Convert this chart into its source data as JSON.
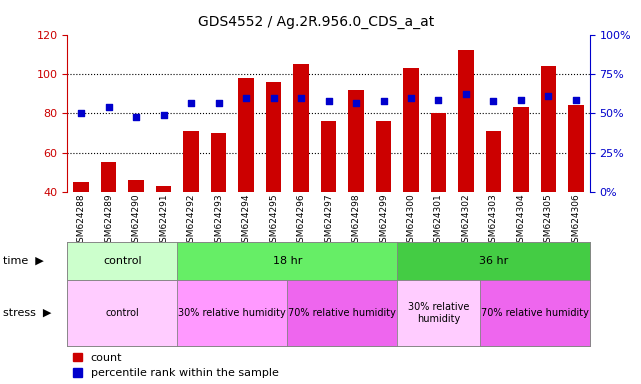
{
  "title": "GDS4552 / Ag.2R.956.0_CDS_a_at",
  "samples": [
    "GSM624288",
    "GSM624289",
    "GSM624290",
    "GSM624291",
    "GSM624292",
    "GSM624293",
    "GSM624294",
    "GSM624295",
    "GSM624296",
    "GSM624297",
    "GSM624298",
    "GSM624299",
    "GSM624300",
    "GSM624301",
    "GSM624302",
    "GSM624303",
    "GSM624304",
    "GSM624305",
    "GSM624306"
  ],
  "counts": [
    45,
    55,
    46,
    43,
    71,
    70,
    98,
    96,
    105,
    76,
    92,
    76,
    103,
    80,
    112,
    71,
    83,
    104,
    84
  ],
  "percentiles_left_scale": [
    80,
    83,
    78,
    79,
    85,
    85,
    88,
    88,
    88,
    86,
    85,
    86,
    88,
    87,
    90,
    86,
    87,
    89,
    87
  ],
  "bar_color": "#CC0000",
  "dot_color": "#0000CC",
  "left_ylim": [
    40,
    120
  ],
  "left_yticks": [
    40,
    60,
    80,
    100,
    120
  ],
  "right_ylim": [
    0,
    100
  ],
  "right_yticks": [
    0,
    25,
    50,
    75,
    100
  ],
  "right_yticklabels": [
    "0%",
    "25%",
    "50%",
    "75%",
    "100%"
  ],
  "time_groups": [
    {
      "label": "control",
      "start": 0,
      "end": 4,
      "color": "#CCFFCC"
    },
    {
      "label": "18 hr",
      "start": 4,
      "end": 12,
      "color": "#66EE66"
    },
    {
      "label": "36 hr",
      "start": 12,
      "end": 19,
      "color": "#44CC44"
    }
  ],
  "stress_groups": [
    {
      "label": "control",
      "start": 0,
      "end": 4,
      "color": "#FFCCFF"
    },
    {
      "label": "30% relative humidity",
      "start": 4,
      "end": 8,
      "color": "#FF99FF"
    },
    {
      "label": "70% relative humidity",
      "start": 8,
      "end": 12,
      "color": "#EE66EE"
    },
    {
      "label": "30% relative\nhumidity",
      "start": 12,
      "end": 15,
      "color": "#FFCCFF"
    },
    {
      "label": "70% relative humidity",
      "start": 15,
      "end": 19,
      "color": "#EE66EE"
    }
  ],
  "legend_count_label": "count",
  "legend_pct_label": "percentile rank within the sample",
  "bg_color": "#FFFFFF",
  "left_axis_color": "#CC0000",
  "right_axis_color": "#0000CC",
  "title_color": "#000000"
}
